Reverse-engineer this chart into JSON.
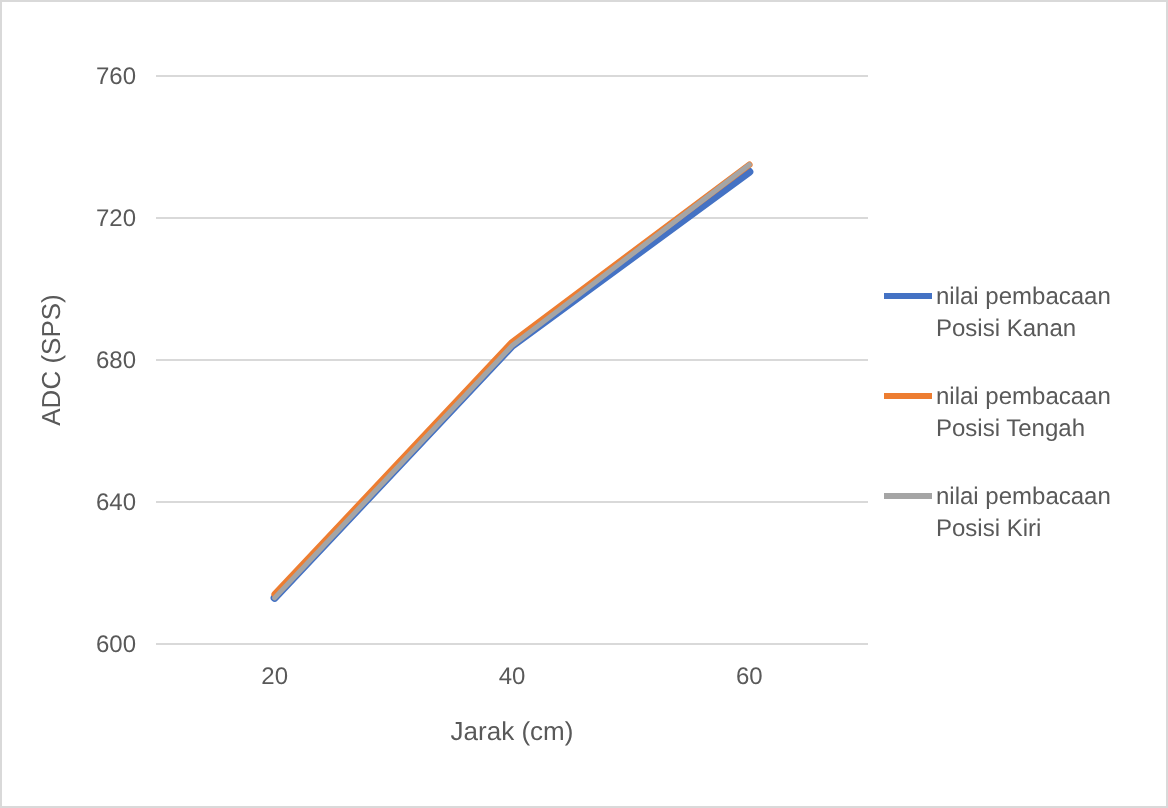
{
  "chart_data": {
    "type": "line",
    "xlabel": "Jarak (cm)",
    "ylabel": "ADC (SPS)",
    "categories": [
      "20",
      "40",
      "60"
    ],
    "series": [
      {
        "name": "nilai pembacaan Posisi Kanan",
        "color": "#4472c4",
        "values": [
          613,
          684,
          733
        ]
      },
      {
        "name": "nilai pembacaan Posisi Tengah",
        "color": "#ed7d31",
        "values": [
          614,
          685,
          735
        ]
      },
      {
        "name": "nilai pembacaan Posisi Kiri",
        "color": "#a5a5a5",
        "values": [
          613,
          684,
          735
        ]
      }
    ],
    "ylim": [
      600,
      760
    ],
    "yticks": [
      600,
      640,
      680,
      720,
      760
    ],
    "grid": "y",
    "legend": "right",
    "marker": "none",
    "line_style": "solid"
  }
}
